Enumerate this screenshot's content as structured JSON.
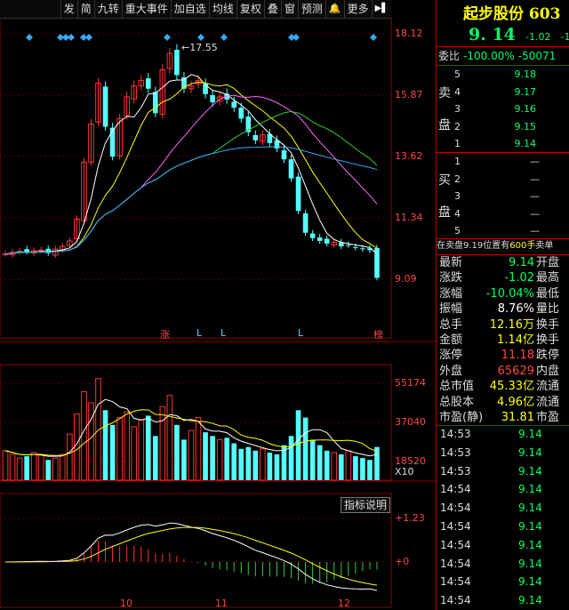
{
  "toolbar": {
    "items": [
      "发",
      "简",
      "九转",
      "重大事件",
      "加自选",
      "均线",
      "复权",
      "叠",
      "窗",
      "预测",
      "🔔",
      "更多",
      "▶▌"
    ]
  },
  "chart_axis": {
    "price_labels": [
      "18.12",
      "15.87",
      "13.62",
      "11.34",
      "9.09"
    ],
    "high_label": "17.55",
    "volume_labels": [
      "55174",
      "37040",
      "18520"
    ],
    "volume_unit": "X10",
    "macd_labels": [
      "1.23",
      "0"
    ],
    "dates": [
      "10",
      "11",
      "12"
    ],
    "markers": [
      "涨",
      "L",
      "L",
      "L",
      "榜"
    ],
    "indicator_button": "指标说明"
  },
  "chart_data": {
    "type": "candlestick",
    "close": [
      10.02,
      10.08,
      10.12,
      10.1,
      10.14,
      10.16,
      10.05,
      10.2,
      10.3,
      10.5,
      11.3,
      13.4,
      14.8,
      16.3,
      14.7,
      13.6,
      15.0,
      15.8,
      16.2,
      16.4,
      16.1,
      15.2,
      16.8,
      17.4,
      16.6,
      16.1,
      16.2,
      16.4,
      15.9,
      15.6,
      15.8,
      15.7,
      15.4,
      15.0,
      14.5,
      14.2,
      14.4,
      14.1,
      13.9,
      13.5,
      12.8,
      11.6,
      10.8,
      10.6,
      10.5,
      10.4,
      10.45,
      10.3,
      10.35,
      10.25,
      10.2,
      10.16,
      9.14
    ],
    "volumes": [
      16000,
      14000,
      12000,
      13000,
      15000,
      14000,
      11000,
      12000,
      14000,
      25000,
      36000,
      48000,
      42000,
      55174,
      38000,
      30000,
      34000,
      37000,
      29000,
      33000,
      35000,
      24000,
      40000,
      46000,
      30000,
      22000,
      27000,
      34000,
      26000,
      24000,
      22000,
      23000,
      20000,
      17000,
      18000,
      16000,
      17000,
      15000,
      14000,
      19000,
      24000,
      38000,
      34000,
      22000,
      19000,
      16000,
      15000,
      14000,
      16000,
      13000,
      12000,
      11000,
      18000
    ],
    "ylim": [
      9.09,
      18.12
    ],
    "macd_ylim": [
      -0.7,
      1.23
    ]
  },
  "right_panel": {
    "stock_name": "起步股份 603",
    "price": "9. 14",
    "change": "-1.02",
    "change_pct": "-1",
    "weibi_label": "委比",
    "weibi_value": "-100.00%",
    "weibi_diff": "-50071",
    "sell_label": [
      "卖",
      "盘"
    ],
    "buy_label": [
      "买",
      "盘"
    ],
    "sells": [
      {
        "n": "5",
        "p": "9.18",
        "v": ""
      },
      {
        "n": "4",
        "p": "9.17",
        "v": ""
      },
      {
        "n": "3",
        "p": "9.16",
        "v": ""
      },
      {
        "n": "2",
        "p": "9.15",
        "v": ""
      },
      {
        "n": "1",
        "p": "9.14",
        "v": ""
      }
    ],
    "buys": [
      {
        "n": "1",
        "p": "—"
      },
      {
        "n": "2",
        "p": "—"
      },
      {
        "n": "3",
        "p": "—"
      },
      {
        "n": "4",
        "p": "—"
      },
      {
        "n": "5",
        "p": "—"
      }
    ],
    "position_text": "在卖盘9.19位置有",
    "position_qty": "600手",
    "position_suffix": "卖单",
    "stats": [
      {
        "l": "最新",
        "v": "9.14",
        "c": "#00ff66",
        "r": "开盘"
      },
      {
        "l": "涨跌",
        "v": "-1.02",
        "c": "#00ff66",
        "r": "最高"
      },
      {
        "l": "涨幅",
        "v": "-10.04%",
        "c": "#00ff66",
        "r": "最低"
      },
      {
        "l": "振幅",
        "v": "8.76%",
        "c": "#ffffff",
        "r": "量比"
      },
      {
        "l": "总手",
        "v": "12.16万",
        "c": "#ffff00",
        "r": "换手"
      },
      {
        "l": "金额",
        "v": "1.14亿",
        "c": "#ffff00",
        "r": "换手"
      },
      {
        "l": "涨停",
        "v": "11.18",
        "c": "#ff4444",
        "r": "跌停"
      },
      {
        "l": "外盘",
        "v": "65629",
        "c": "#ff4444",
        "r": "内盘"
      },
      {
        "l": "总市值",
        "v": "45.33亿",
        "c": "#ffff00",
        "r": "流通"
      },
      {
        "l": "总股本",
        "v": "4.96亿",
        "c": "#ffff00",
        "r": "流通"
      },
      {
        "l": "市盈(静)",
        "v": "31.81",
        "c": "#ffff00",
        "r": "市盈"
      }
    ],
    "ticks": [
      {
        "t": "14:53",
        "p": "9.14"
      },
      {
        "t": "14:53",
        "p": "9.14"
      },
      {
        "t": "14:53",
        "p": "9.14"
      },
      {
        "t": "14:54",
        "p": "9.14"
      },
      {
        "t": "14:54",
        "p": "9.14"
      },
      {
        "t": "14:54",
        "p": "9.14"
      },
      {
        "t": "14:54",
        "p": "9.14"
      },
      {
        "t": "14:54",
        "p": "9.14"
      },
      {
        "t": "14:54",
        "p": "9.14"
      },
      {
        "t": "14:54",
        "p": "9.14"
      }
    ]
  }
}
